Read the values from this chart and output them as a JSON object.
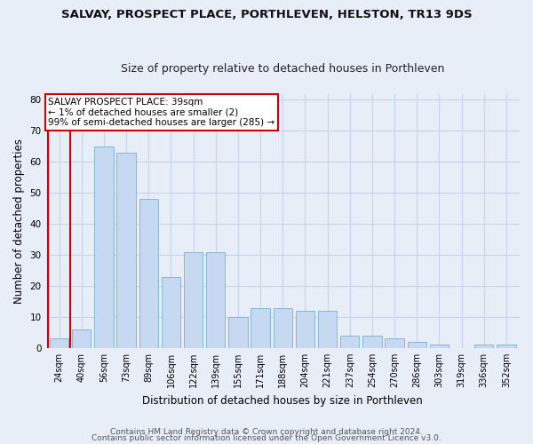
{
  "title": "SALVAY, PROSPECT PLACE, PORTHLEVEN, HELSTON, TR13 9DS",
  "subtitle": "Size of property relative to detached houses in Porthleven",
  "xlabel": "Distribution of detached houses by size in Porthleven",
  "ylabel": "Number of detached properties",
  "categories": [
    "24sqm",
    "40sqm",
    "56sqm",
    "73sqm",
    "89sqm",
    "106sqm",
    "122sqm",
    "139sqm",
    "155sqm",
    "171sqm",
    "188sqm",
    "204sqm",
    "221sqm",
    "237sqm",
    "254sqm",
    "270sqm",
    "286sqm",
    "303sqm",
    "319sqm",
    "336sqm",
    "352sqm"
  ],
  "values": [
    3,
    6,
    65,
    63,
    48,
    23,
    31,
    31,
    10,
    13,
    13,
    12,
    12,
    4,
    4,
    3,
    2,
    1,
    0,
    1,
    1
  ],
  "bar_color": "#c6d9f0",
  "bar_edge_color": "#7bafd4",
  "highlight_edge_color": "#cc0000",
  "annotation_text": "SALVAY PROSPECT PLACE: 39sqm\n← 1% of detached houses are smaller (2)\n99% of semi-detached houses are larger (285) →",
  "annotation_box_facecolor": "#ffffff",
  "annotation_box_edgecolor": "#cc0000",
  "ylim": [
    0,
    82
  ],
  "yticks": [
    0,
    10,
    20,
    30,
    40,
    50,
    60,
    70,
    80
  ],
  "grid_color": "#c8d4e8",
  "background_color": "#e8eef8",
  "footer_line1": "Contains HM Land Registry data © Crown copyright and database right 2024.",
  "footer_line2": "Contains public sector information licensed under the Open Government Licence v3.0.",
  "title_fontsize": 9.5,
  "subtitle_fontsize": 9,
  "tick_fontsize": 7,
  "ylabel_fontsize": 8.5,
  "xlabel_fontsize": 8.5,
  "annotation_fontsize": 7.5,
  "footer_fontsize": 6.5,
  "highlight_bar_index": 0,
  "red_line_x": -0.5
}
